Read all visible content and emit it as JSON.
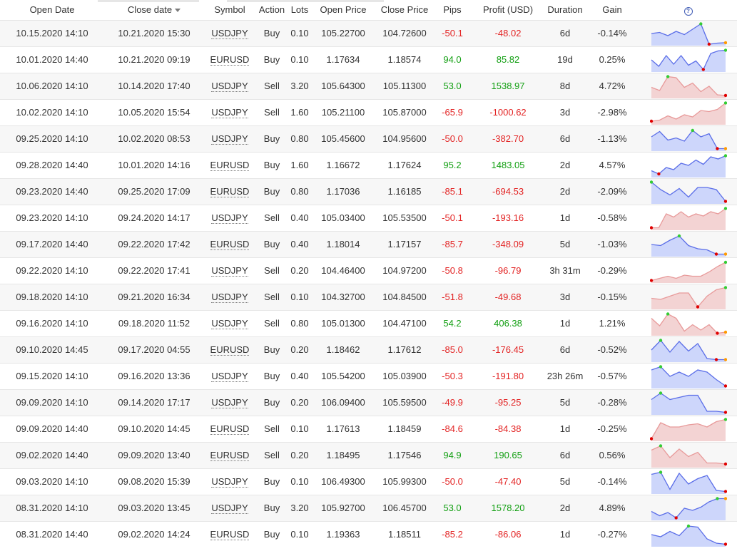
{
  "colors": {
    "positive": "#129f12",
    "negative": "#e32424",
    "buy_fill": "#cdd6fb",
    "buy_line": "#5b6ee8",
    "sell_fill": "#f3d3d3",
    "sell_line": "#e89a9a",
    "start_marker": "#ff9900",
    "high_marker": "#33cc33",
    "low_marker": "#e00000"
  },
  "headers": {
    "open_date": "Open Date",
    "close_date": "Close date",
    "symbol": "Symbol",
    "action": "Action",
    "lots": "Lots",
    "open_price": "Open Price",
    "close_price": "Close Price",
    "pips": "Pips",
    "profit": "Profit (USD)",
    "duration": "Duration",
    "gain": "Gain",
    "help": "?"
  },
  "trades": [
    {
      "open_date": "10.15.2020 14:10",
      "close_date": "10.21.2020 15:30",
      "symbol": "USDJPY",
      "action": "Buy",
      "lots": "0.10",
      "open_price": "105.22700",
      "close_price": "104.72600",
      "pips": "-50.1",
      "profit": "-48.02",
      "duration": "6d",
      "gain": "-0.14%",
      "spark": [
        0.5,
        0.45,
        0.6,
        0.4,
        0.55,
        0.3,
        0.05,
        1.0,
        0.95,
        0.93
      ]
    },
    {
      "open_date": "10.01.2020 14:40",
      "close_date": "10.21.2020 09:19",
      "symbol": "EURUSD",
      "action": "Buy",
      "lots": "0.10",
      "open_price": "1.17634",
      "close_price": "1.18574",
      "pips": "94.0",
      "profit": "85.82",
      "duration": "19d",
      "gain": "0.25%",
      "spark": [
        0.5,
        0.8,
        0.3,
        0.7,
        0.3,
        0.75,
        0.55,
        0.95,
        0.2,
        0.08,
        0.05
      ]
    },
    {
      "open_date": "10.06.2020 14:10",
      "close_date": "10.14.2020 17:40",
      "symbol": "USDJPY",
      "action": "Sell",
      "lots": "3.20",
      "open_price": "105.64300",
      "close_price": "105.11300",
      "pips": "53.0",
      "profit": "1538.97",
      "duration": "8d",
      "gain": "4.72%",
      "spark": [
        0.55,
        0.7,
        0.05,
        0.1,
        0.55,
        0.35,
        0.75,
        0.5,
        0.9,
        0.93
      ]
    },
    {
      "open_date": "10.02.2020 14:10",
      "close_date": "10.05.2020 15:54",
      "symbol": "USDJPY",
      "action": "Sell",
      "lots": "1.60",
      "open_price": "105.21100",
      "close_price": "105.87000",
      "pips": "-65.9",
      "profit": "-1000.62",
      "duration": "3d",
      "gain": "-2.98%",
      "spark": [
        0.9,
        0.85,
        0.65,
        0.8,
        0.6,
        0.7,
        0.4,
        0.45,
        0.35,
        0.05
      ]
    },
    {
      "open_date": "09.25.2020 14:10",
      "close_date": "10.02.2020 08:53",
      "symbol": "USDJPY",
      "action": "Buy",
      "lots": "0.80",
      "open_price": "105.45600",
      "close_price": "104.95600",
      "pips": "-50.0",
      "profit": "-382.70",
      "duration": "6d",
      "gain": "-1.13%",
      "spark": [
        0.4,
        0.15,
        0.55,
        0.45,
        0.6,
        0.1,
        0.4,
        0.25,
        0.95,
        0.95
      ]
    },
    {
      "open_date": "09.28.2020 14:40",
      "close_date": "10.01.2020 14:16",
      "symbol": "EURUSD",
      "action": "Buy",
      "lots": "1.60",
      "open_price": "1.16672",
      "close_price": "1.17624",
      "pips": "95.2",
      "profit": "1483.05",
      "duration": "2d",
      "gain": "4.57%",
      "spark": [
        0.75,
        0.9,
        0.6,
        0.7,
        0.4,
        0.5,
        0.25,
        0.45,
        0.1,
        0.2,
        0.05
      ]
    },
    {
      "open_date": "09.23.2020 14:40",
      "close_date": "09.25.2020 17:09",
      "symbol": "EURUSD",
      "action": "Buy",
      "lots": "0.80",
      "open_price": "1.17036",
      "close_price": "1.16185",
      "pips": "-85.1",
      "profit": "-694.53",
      "duration": "2d",
      "gain": "-2.09%",
      "spark": [
        0.05,
        0.4,
        0.65,
        0.35,
        0.75,
        0.3,
        0.3,
        0.4,
        0.95
      ]
    },
    {
      "open_date": "09.23.2020 14:10",
      "close_date": "09.24.2020 14:17",
      "symbol": "USDJPY",
      "action": "Sell",
      "lots": "0.40",
      "open_price": "105.03400",
      "close_price": "105.53500",
      "pips": "-50.1",
      "profit": "-193.16",
      "duration": "1d",
      "gain": "-0.58%",
      "spark": [
        0.95,
        0.95,
        0.3,
        0.45,
        0.2,
        0.45,
        0.3,
        0.4,
        0.2,
        0.3,
        0.05
      ]
    },
    {
      "open_date": "09.17.2020 14:40",
      "close_date": "09.22.2020 17:42",
      "symbol": "EURUSD",
      "action": "Buy",
      "lots": "0.40",
      "open_price": "1.18014",
      "close_price": "1.17157",
      "pips": "-85.7",
      "profit": "-348.09",
      "duration": "5d",
      "gain": "-1.03%",
      "spark": [
        0.5,
        0.55,
        0.3,
        0.1,
        0.55,
        0.7,
        0.75,
        0.95,
        0.95
      ]
    },
    {
      "open_date": "09.22.2020 14:10",
      "close_date": "09.22.2020 17:41",
      "symbol": "USDJPY",
      "action": "Sell",
      "lots": "0.20",
      "open_price": "104.46400",
      "close_price": "104.97200",
      "pips": "-50.8",
      "profit": "-96.79",
      "duration": "3h 31m",
      "gain": "-0.29%",
      "spark": [
        0.95,
        0.85,
        0.75,
        0.85,
        0.7,
        0.75,
        0.75,
        0.55,
        0.3,
        0.1
      ]
    },
    {
      "open_date": "09.18.2020 14:10",
      "close_date": "09.21.2020 16:34",
      "symbol": "USDJPY",
      "action": "Sell",
      "lots": "0.10",
      "open_price": "104.32700",
      "close_price": "104.84500",
      "pips": "-51.8",
      "profit": "-49.68",
      "duration": "3d",
      "gain": "-0.15%",
      "spark": [
        0.55,
        0.6,
        0.45,
        0.3,
        0.3,
        0.95,
        0.45,
        0.15,
        0.05
      ]
    },
    {
      "open_date": "09.16.2020 14:10",
      "close_date": "09.18.2020 11:52",
      "symbol": "USDJPY",
      "action": "Sell",
      "lots": "0.80",
      "open_price": "105.01300",
      "close_price": "104.47100",
      "pips": "54.2",
      "profit": "406.38",
      "duration": "1d",
      "gain": "1.21%",
      "spark": [
        0.25,
        0.6,
        0.05,
        0.25,
        0.85,
        0.55,
        0.8,
        0.55,
        0.95,
        0.9
      ]
    },
    {
      "open_date": "09.10.2020 14:45",
      "close_date": "09.17.2020 04:55",
      "symbol": "EURUSD",
      "action": "Buy",
      "lots": "0.20",
      "open_price": "1.18462",
      "close_price": "1.17612",
      "pips": "-85.0",
      "profit": "-176.45",
      "duration": "6d",
      "gain": "-0.52%",
      "spark": [
        0.5,
        0.05,
        0.6,
        0.1,
        0.55,
        0.2,
        0.9,
        0.95,
        0.95
      ]
    },
    {
      "open_date": "09.15.2020 14:10",
      "close_date": "09.16.2020 13:36",
      "symbol": "USDJPY",
      "action": "Buy",
      "lots": "0.40",
      "open_price": "105.54200",
      "close_price": "105.03900",
      "pips": "-50.3",
      "profit": "-191.80",
      "duration": "23h 26m",
      "gain": "-0.57%",
      "spark": [
        0.2,
        0.05,
        0.5,
        0.3,
        0.5,
        0.2,
        0.3,
        0.65,
        0.95
      ]
    },
    {
      "open_date": "09.09.2020 14:10",
      "close_date": "09.14.2020 17:17",
      "symbol": "USDJPY",
      "action": "Buy",
      "lots": "0.20",
      "open_price": "106.09400",
      "close_price": "105.59500",
      "pips": "-49.9",
      "profit": "-95.25",
      "duration": "5d",
      "gain": "-0.28%",
      "spark": [
        0.35,
        0.05,
        0.35,
        0.25,
        0.15,
        0.15,
        0.9,
        0.9,
        0.95
      ]
    },
    {
      "open_date": "09.09.2020 14:40",
      "close_date": "09.10.2020 14:45",
      "symbol": "EURUSD",
      "action": "Sell",
      "lots": "0.10",
      "open_price": "1.17613",
      "close_price": "1.18459",
      "pips": "-84.6",
      "profit": "-84.38",
      "duration": "1d",
      "gain": "-0.25%",
      "spark": [
        0.95,
        0.2,
        0.4,
        0.4,
        0.3,
        0.25,
        0.4,
        0.15,
        0.05
      ]
    },
    {
      "open_date": "09.02.2020 14:40",
      "close_date": "09.09.2020 13:40",
      "symbol": "EURUSD",
      "action": "Sell",
      "lots": "0.20",
      "open_price": "1.18495",
      "close_price": "1.17546",
      "pips": "94.9",
      "profit": "190.65",
      "duration": "6d",
      "gain": "0.56%",
      "spark": [
        0.25,
        0.05,
        0.6,
        0.2,
        0.55,
        0.35,
        0.85,
        0.85,
        0.9
      ]
    },
    {
      "open_date": "09.03.2020 14:10",
      "close_date": "09.08.2020 15:39",
      "symbol": "USDJPY",
      "action": "Buy",
      "lots": "0.10",
      "open_price": "106.49300",
      "close_price": "105.99300",
      "pips": "-50.0",
      "profit": "-47.40",
      "duration": "5d",
      "gain": "-0.14%",
      "spark": [
        0.15,
        0.05,
        0.85,
        0.1,
        0.6,
        0.35,
        0.2,
        0.9,
        0.95
      ]
    },
    {
      "open_date": "08.31.2020 14:10",
      "close_date": "09.03.2020 13:45",
      "symbol": "USDJPY",
      "action": "Buy",
      "lots": "3.20",
      "open_price": "105.92700",
      "close_price": "106.45700",
      "pips": "53.0",
      "profit": "1578.20",
      "duration": "2d",
      "gain": "4.89%",
      "spark": [
        0.65,
        0.85,
        0.7,
        0.95,
        0.5,
        0.6,
        0.45,
        0.2,
        0.05,
        0.05
      ]
    },
    {
      "open_date": "08.31.2020 14:40",
      "close_date": "09.02.2020 14:24",
      "symbol": "EURUSD",
      "action": "Buy",
      "lots": "0.10",
      "open_price": "1.19363",
      "close_price": "1.18511",
      "pips": "-85.2",
      "profit": "-86.06",
      "duration": "1d",
      "gain": "-0.27%",
      "spark": [
        0.5,
        0.6,
        0.35,
        0.55,
        0.1,
        0.15,
        0.7,
        0.9,
        0.95
      ]
    }
  ]
}
